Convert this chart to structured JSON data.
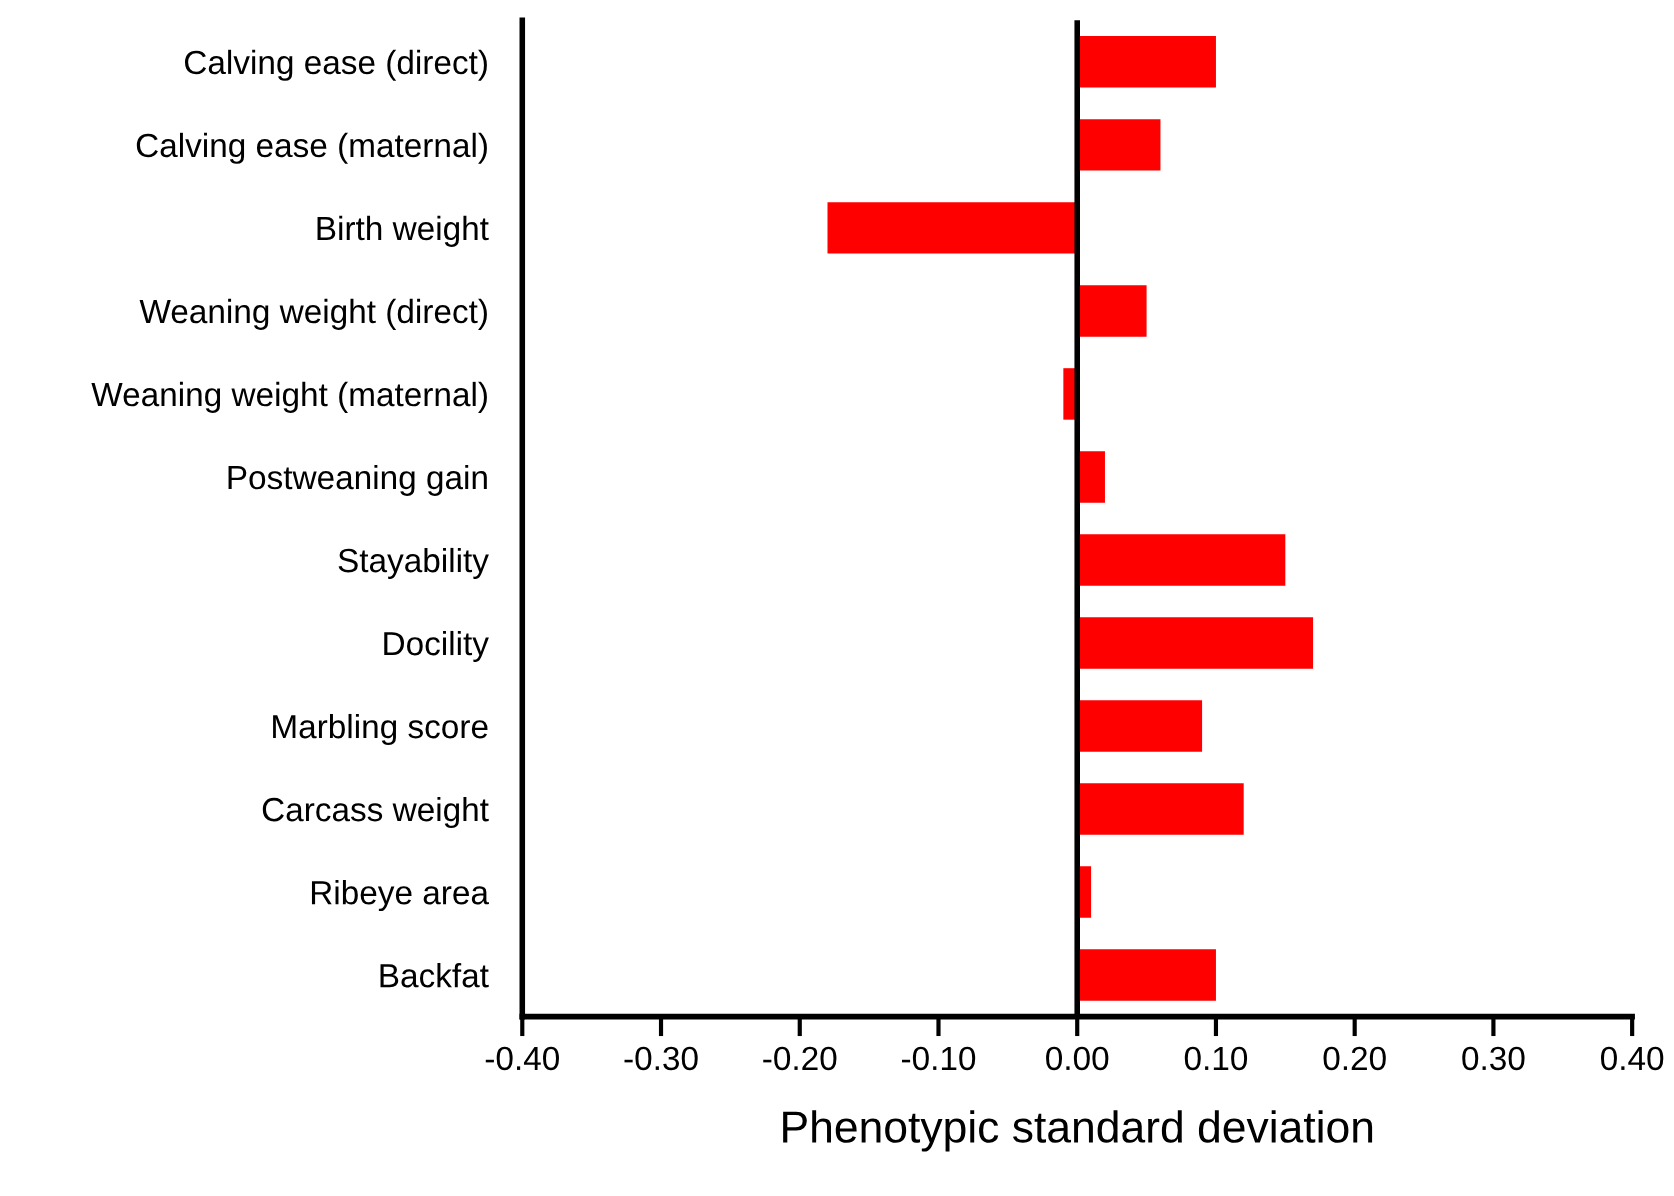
{
  "chart_data": {
    "type": "bar",
    "orientation": "horizontal",
    "xlabel": "Phenotypic standard deviation",
    "categories": [
      "Calving ease (direct)",
      "Calving ease (maternal)",
      "Birth weight",
      "Weaning weight (direct)",
      "Weaning weight (maternal)",
      "Postweaning gain",
      "Stayability",
      "Docility",
      "Marbling score",
      "Carcass weight",
      "Ribeye area",
      "Backfat"
    ],
    "values": [
      0.1,
      0.06,
      -0.18,
      0.05,
      -0.01,
      0.02,
      0.15,
      0.17,
      0.09,
      0.12,
      0.01,
      0.1
    ],
    "color": "#ff0000",
    "xlim": [
      -0.4,
      0.4
    ],
    "xticks": [
      {
        "value": -0.4,
        "label": "-0.40"
      },
      {
        "value": -0.3,
        "label": "-0.30"
      },
      {
        "value": -0.2,
        "label": "-0.20"
      },
      {
        "value": -0.1,
        "label": "-0.10"
      },
      {
        "value": 0,
        "label": "0.00"
      },
      {
        "value": 0.1,
        "label": "0.10"
      },
      {
        "value": 0.2,
        "label": "0.20"
      },
      {
        "value": 0.3,
        "label": "0.30"
      },
      {
        "value": 0.4,
        "label": "0.40"
      }
    ],
    "ref_lines": [
      {
        "axis": "x",
        "value": 0,
        "color": "#000000"
      }
    ],
    "grid": false
  }
}
